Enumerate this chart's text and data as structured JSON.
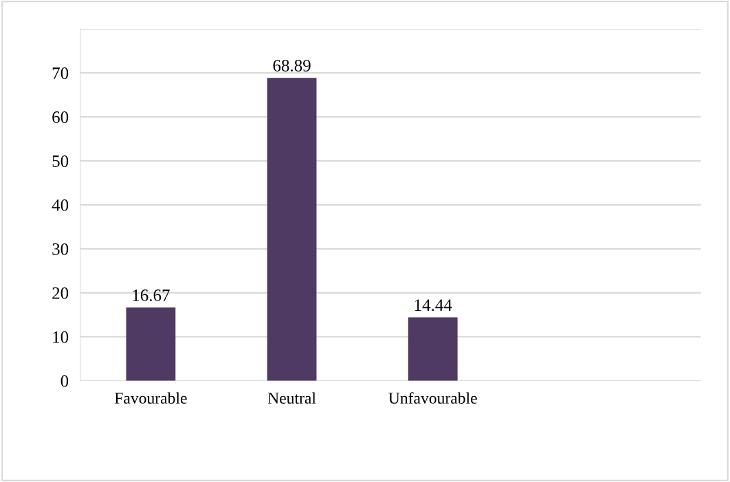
{
  "chart_data": {
    "type": "bar",
    "categories": [
      "Favourable",
      "Neutral",
      "Unfavourable"
    ],
    "values": [
      16.67,
      68.89,
      14.44
    ],
    "color": "#4e3a62",
    "ylim": [
      0,
      80
    ],
    "yticks": [
      0,
      10,
      20,
      30,
      40,
      50,
      60,
      70,
      {
        "value": 80,
        "label": null
      }
    ],
    "grid": "y",
    "data_labels": true
  }
}
